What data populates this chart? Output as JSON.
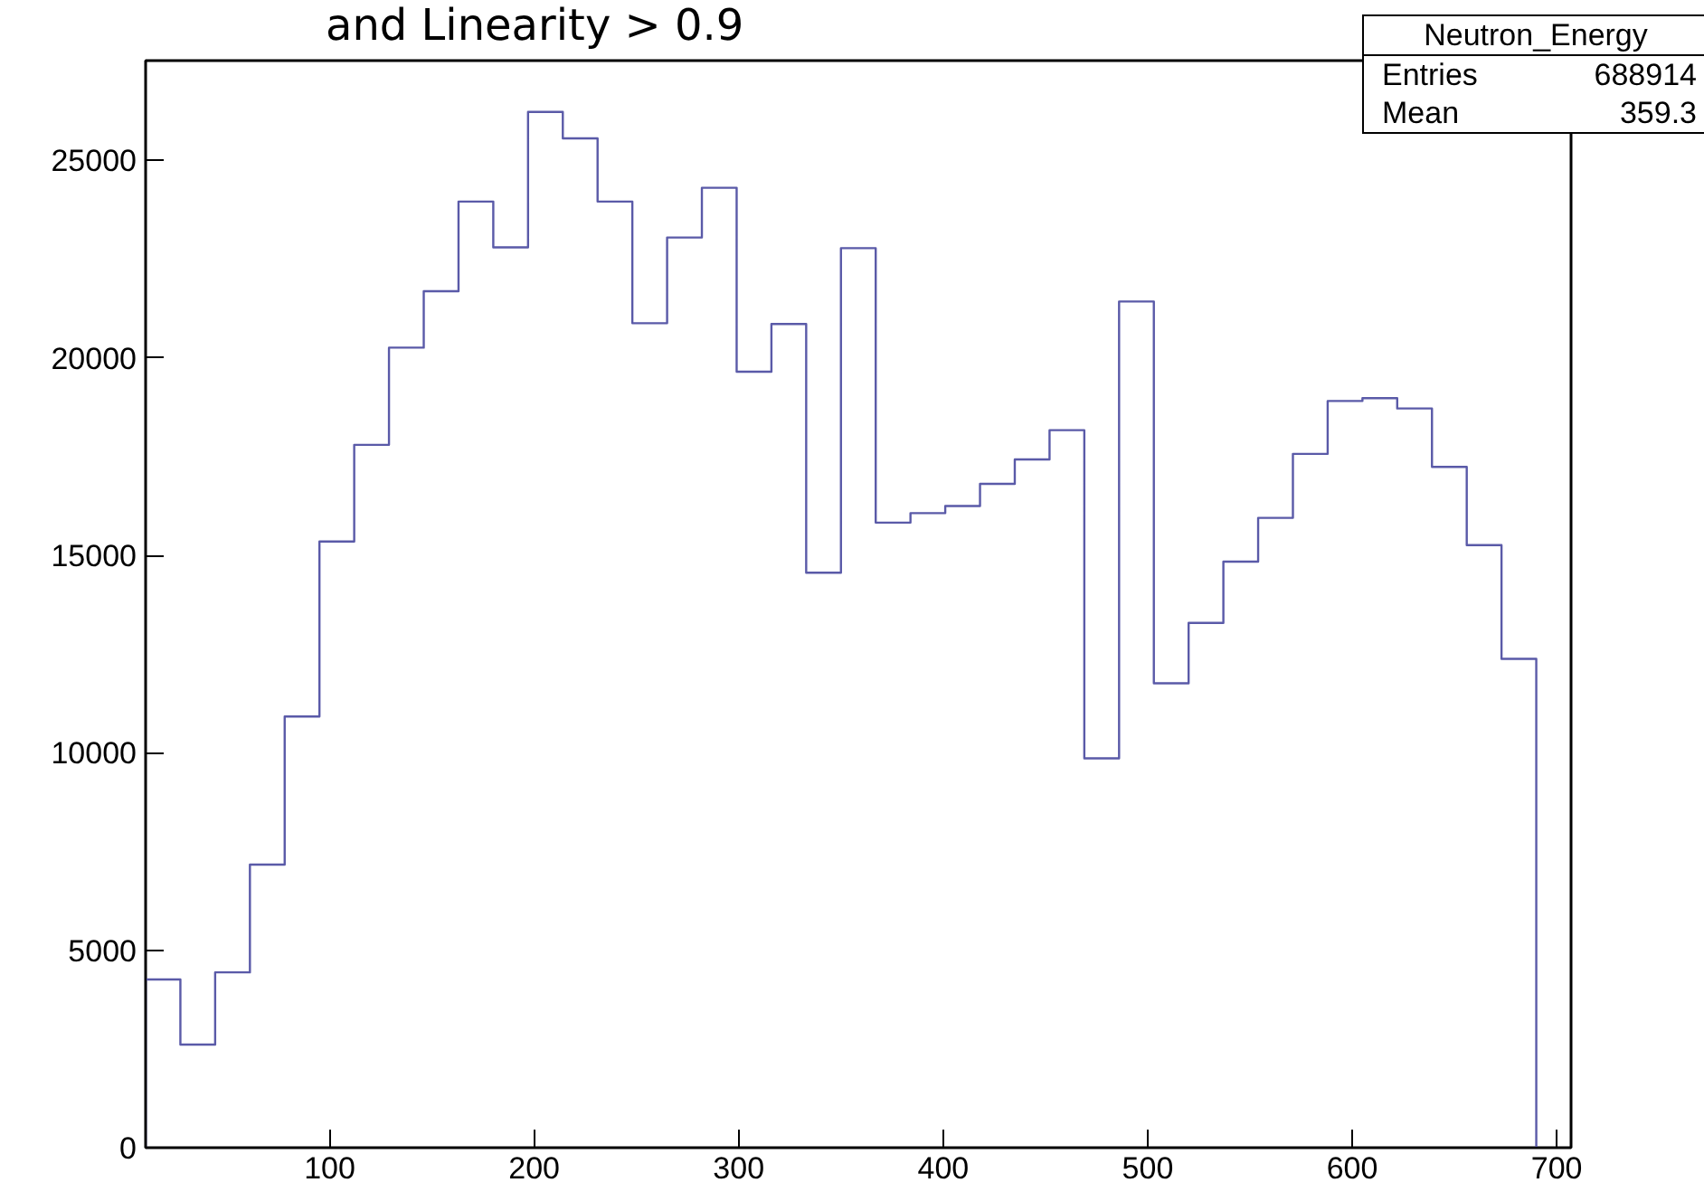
{
  "chart_data": {
    "type": "histogram",
    "title": "and Linearity > 0.9",
    "bins": [
      10,
      27,
      44,
      61,
      78,
      95,
      112,
      129,
      146,
      163,
      180,
      197,
      214,
      231,
      248,
      265,
      282,
      299,
      316,
      333,
      350,
      367,
      384,
      401,
      418,
      435,
      452,
      469,
      486,
      503,
      520,
      537,
      554,
      571,
      588,
      605,
      622,
      639,
      656,
      673,
      690
    ],
    "values": [
      4260,
      2610,
      4440,
      7170,
      10920,
      15350,
      17800,
      20260,
      21690,
      23960,
      22800,
      26230,
      25560,
      23960,
      20880,
      23050,
      24310,
      19650,
      20860,
      14560,
      22780,
      15830,
      16070,
      16250,
      16810,
      17430,
      18170,
      9860,
      21430,
      11760,
      13290,
      14840,
      15950,
      17570,
      18910,
      18980,
      18720,
      17240,
      15260,
      12380
    ],
    "color": "#5a5aa8",
    "xlim": [
      10,
      707
    ],
    "ylim": [
      0,
      27530
    ],
    "xticks": [
      100,
      200,
      300,
      400,
      500,
      600,
      700
    ],
    "yticks": [
      0,
      5000,
      10000,
      15000,
      20000,
      25000
    ],
    "grid": false,
    "annotations": [
      "Neutron_Energy",
      "Entries",
      "688914",
      "Mean",
      "359.3"
    ]
  }
}
